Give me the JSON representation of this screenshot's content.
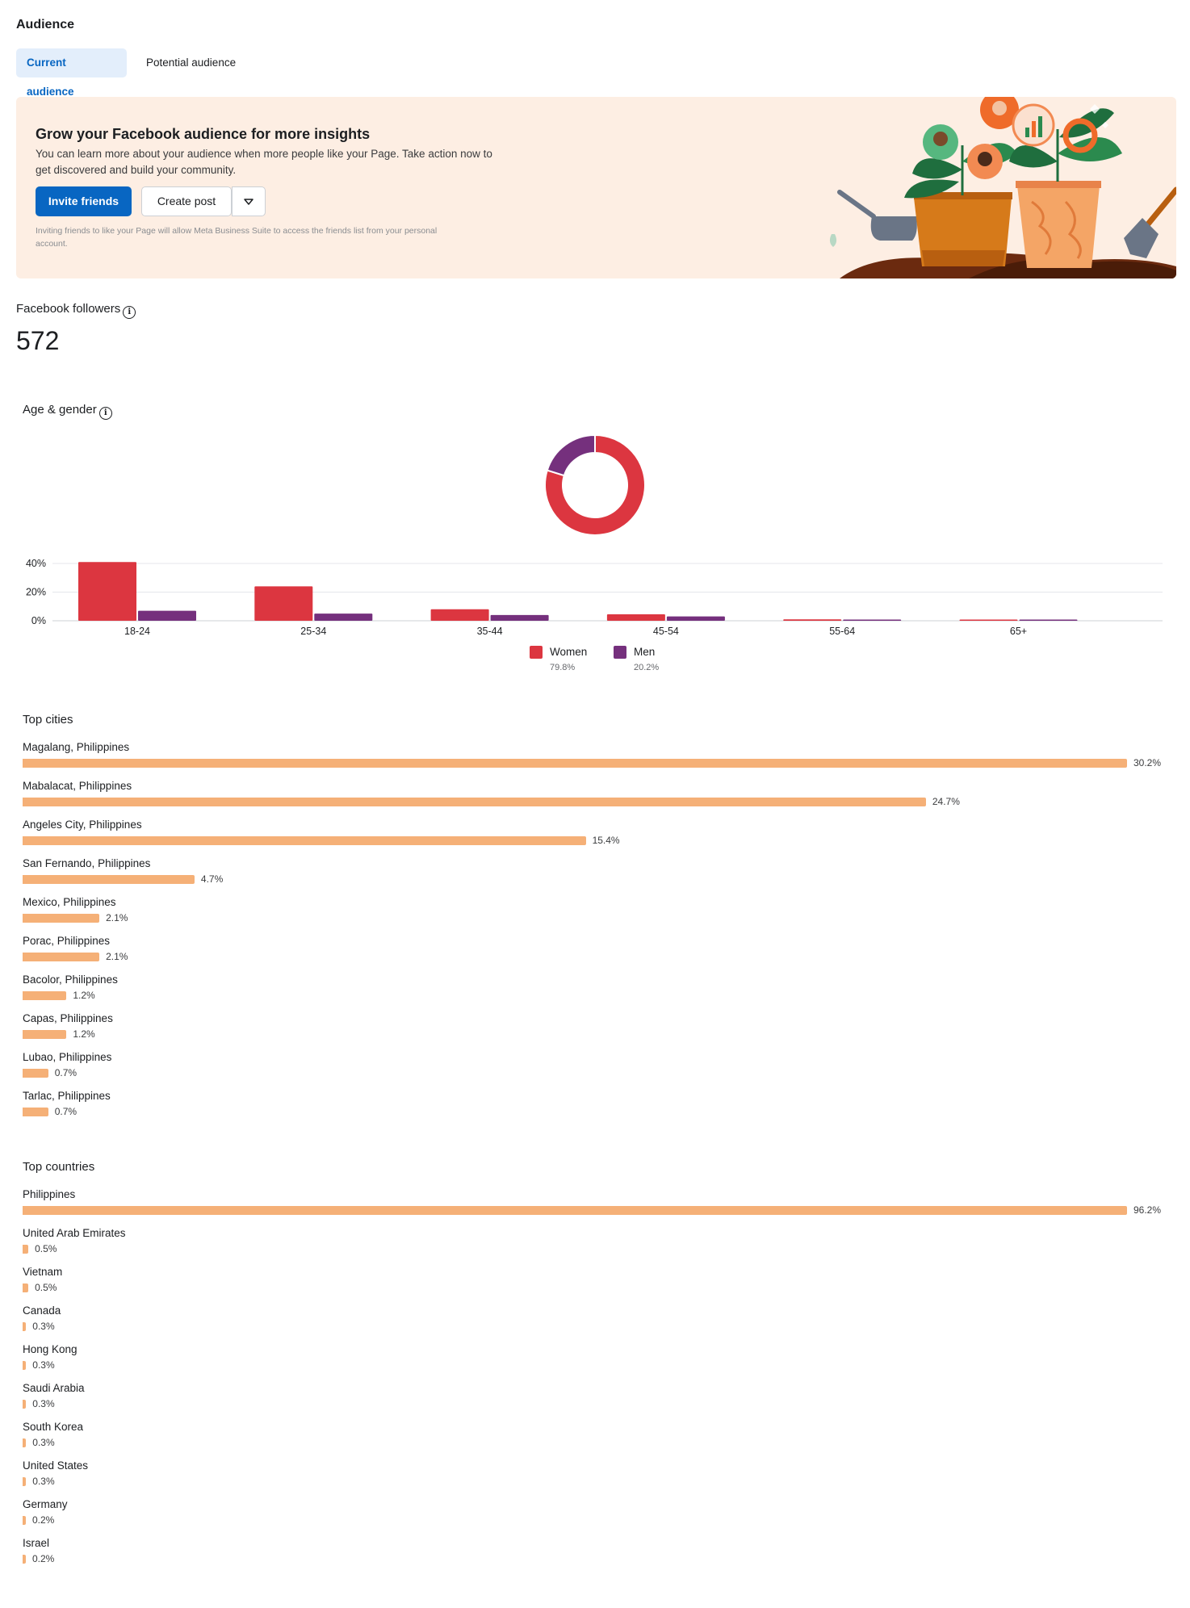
{
  "header": {
    "title": "Audience",
    "tabs": [
      {
        "label": "Current audience",
        "active": true
      },
      {
        "label": "Potential audience",
        "active": false
      }
    ]
  },
  "banner": {
    "title": "Grow your Facebook audience for more insights",
    "description_line1": "You can learn more about your audience when more people like your Page. Take action now to",
    "description_line2": "get discovered and build your community.",
    "invite_button": "Invite friends",
    "create_post_button": "Create post",
    "note_line1": "Inviting friends to like your Page will allow Meta Business Suite to access the friends list from your personal",
    "note_line2": "account."
  },
  "followers": {
    "label": "Facebook followers",
    "count": "572"
  },
  "age_gender": {
    "title": "Age & gender",
    "legend": [
      {
        "name": "Women",
        "pct": "79.8%",
        "color": "#dc3640"
      },
      {
        "name": "Men",
        "pct": "20.2%",
        "color": "#75307d"
      }
    ]
  },
  "top_cities": {
    "title": "Top cities"
  },
  "top_countries": {
    "title": "Top countries"
  },
  "colors": {
    "accent": "#0866c2",
    "women": "#dc3640",
    "men": "#75307d",
    "bar": "#f5b077",
    "banner_bg": "#fdeee3"
  },
  "chart_data": [
    {
      "type": "pie",
      "title": "",
      "categories": [
        "Women",
        "Men"
      ],
      "values": [
        79.8,
        20.2
      ]
    },
    {
      "type": "bar",
      "title": "",
      "categories": [
        "18-24",
        "25-34",
        "35-44",
        "45-54",
        "55-64",
        "65+"
      ],
      "series": [
        {
          "name": "Women",
          "values": [
            41,
            24,
            8,
            4.5,
            1,
            0.8
          ]
        },
        {
          "name": "Men",
          "values": [
            7,
            5,
            4,
            3,
            0.6,
            0.5
          ]
        }
      ],
      "yticks": [
        "40%",
        "20%",
        "0%"
      ],
      "ylim": [
        0,
        40
      ],
      "grid": true,
      "legend": "bottom-center"
    },
    {
      "type": "bar",
      "orientation": "horizontal",
      "title": "Top cities",
      "categories": [
        "Magalang, Philippines",
        "Mabalacat, Philippines",
        "Angeles City, Philippines",
        "San Fernando, Philippines",
        "Mexico, Philippines",
        "Porac, Philippines",
        "Bacolor, Philippines",
        "Capas, Philippines",
        "Lubao, Philippines",
        "Tarlac, Philippines"
      ],
      "values": [
        30.2,
        24.7,
        15.4,
        4.7,
        2.1,
        2.1,
        1.2,
        1.2,
        0.7,
        0.7
      ],
      "labels": [
        "30.2%",
        "24.7%",
        "15.4%",
        "4.7%",
        "2.1%",
        "2.1%",
        "1.2%",
        "1.2%",
        "0.7%",
        "0.7%"
      ]
    },
    {
      "type": "bar",
      "orientation": "horizontal",
      "title": "Top countries",
      "categories": [
        "Philippines",
        "United Arab Emirates",
        "Vietnam",
        "Canada",
        "Hong Kong",
        "Saudi Arabia",
        "South Korea",
        "United States",
        "Germany",
        "Israel"
      ],
      "values": [
        96.2,
        0.5,
        0.5,
        0.3,
        0.3,
        0.3,
        0.3,
        0.3,
        0.2,
        0.2
      ],
      "labels": [
        "96.2%",
        "0.5%",
        "0.5%",
        "0.3%",
        "0.3%",
        "0.3%",
        "0.3%",
        "0.3%",
        "0.2%",
        "0.2%"
      ]
    }
  ]
}
